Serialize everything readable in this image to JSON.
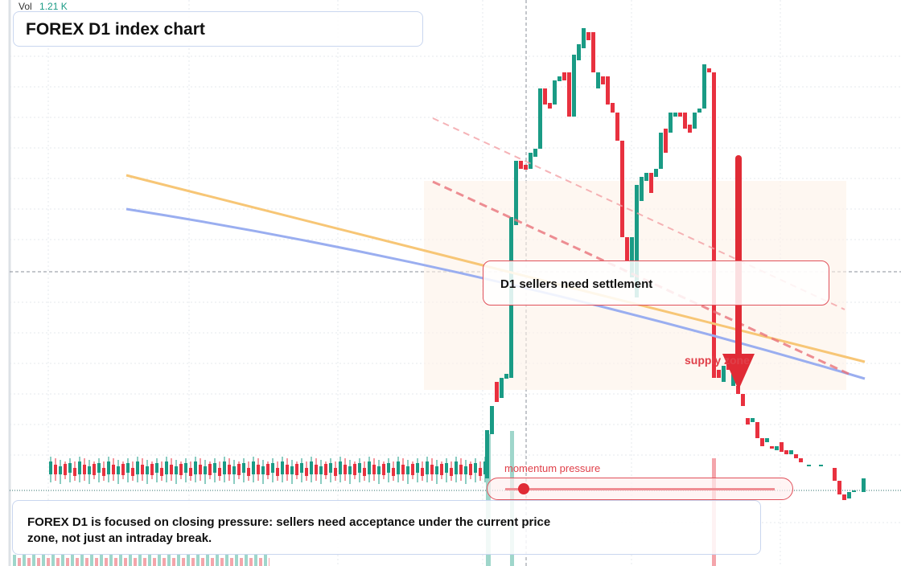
{
  "header": {
    "vol_label": "Vol",
    "vol_value": "1.21 K",
    "title": "FOREX D1 index chart"
  },
  "annotations": {
    "callout": "D1 sellers need settlement",
    "zone": "supply zone",
    "momentum": "momentum pressure"
  },
  "note": "FOREX D1 is focused on closing pressure: sellers need acceptance under the current price zone, not just an intraday break."
}
